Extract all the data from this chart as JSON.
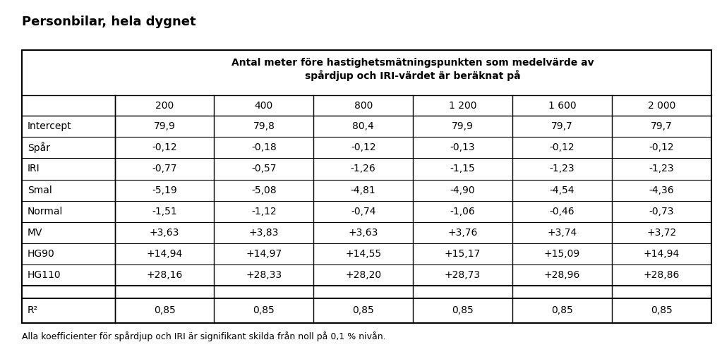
{
  "title": "Personbilar, hela dygnet",
  "header_main_line1": "Antal meter före hastighetsmätningspunkten som medelvärde av",
  "header_main_line2": "spårdjup och IRI-värdet är beräknat på",
  "col_headers": [
    "200",
    "400",
    "800",
    "1 200",
    "1 600",
    "2 000"
  ],
  "row_labels": [
    "Intercept",
    "Spår",
    "IRI",
    "Smal",
    "Normal",
    "MV",
    "HG90",
    "HG110",
    "",
    "R²"
  ],
  "table_data": [
    [
      "79,9",
      "79,8",
      "80,4",
      "79,9",
      "79,7",
      "79,7"
    ],
    [
      "-0,12",
      "-0,18",
      "-0,12",
      "-0,13",
      "-0,12",
      "-0,12"
    ],
    [
      "-0,77",
      "-0,57",
      "-1,26",
      "-1,15",
      "-1,23",
      "-1,23"
    ],
    [
      "-5,19",
      "-5,08",
      "-4,81",
      "-4,90",
      "-4,54",
      "-4,36"
    ],
    [
      "-1,51",
      "-1,12",
      "-0,74",
      "-1,06",
      "-0,46",
      "-0,73"
    ],
    [
      "+3,63",
      "+3,83",
      "+3,63",
      "+3,76",
      "+3,74",
      "+3,72"
    ],
    [
      "+14,94",
      "+14,97",
      "+14,55",
      "+15,17",
      "+15,09",
      "+14,94"
    ],
    [
      "+28,16",
      "+28,33",
      "+28,20",
      "+28,73",
      "+28,96",
      "+28,86"
    ],
    [
      "",
      "",
      "",
      "",
      "",
      ""
    ],
    [
      "0,85",
      "0,85",
      "0,85",
      "0,85",
      "0,85",
      "0,85"
    ]
  ],
  "footnote": "Alla koefficienter för spårdjup och IRI är signifikant skilda från noll på 0,1 % nivån.",
  "bg_color": "#ffffff",
  "text_color": "#000000",
  "title_fontsize": 13,
  "header_fontsize": 10,
  "cell_fontsize": 10,
  "footnote_fontsize": 9
}
